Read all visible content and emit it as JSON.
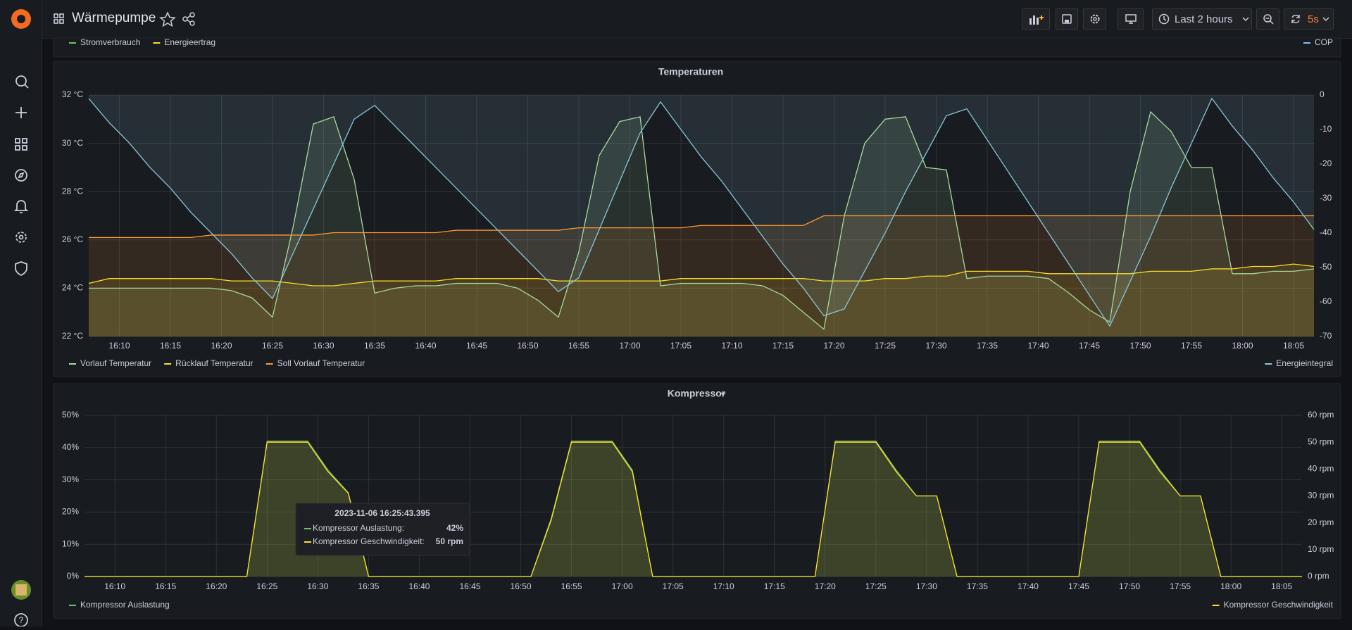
{
  "header": {
    "title": "Wärmepumpe",
    "time_range": "Last 2 hours",
    "refresh": "5s"
  },
  "sidebar": {
    "help": "?"
  },
  "top_panel": {
    "series": [
      {
        "name": "Stromverbrauch",
        "color": "#73bf69"
      },
      {
        "name": "Energieertrag",
        "color": "#fade2a"
      },
      {
        "name": "COP",
        "color": "#8ab8ff",
        "axis": "y2"
      }
    ]
  },
  "tooltip": {
    "time": "2023-11-06 16:25:43.395",
    "rows": [
      {
        "name": "Kompressor Auslastung:",
        "value": "42%"
      },
      {
        "name": "Kompressor Geschwindigkeit:",
        "value": "50 rpm"
      }
    ]
  },
  "chart_data": [
    {
      "type": "line",
      "title": "Temperaturen",
      "grid": true,
      "fill": true,
      "x": [
        "16:07",
        "16:09",
        "16:11",
        "16:13",
        "16:15",
        "16:17",
        "16:19",
        "16:21",
        "16:23",
        "16:25",
        "16:27",
        "16:29",
        "16:31",
        "16:33",
        "16:35",
        "16:37",
        "16:39",
        "16:41",
        "16:43",
        "16:45",
        "16:47",
        "16:49",
        "16:51",
        "16:53",
        "16:55",
        "16:57",
        "16:59",
        "17:01",
        "17:03",
        "17:05",
        "17:07",
        "17:09",
        "17:11",
        "17:13",
        "17:15",
        "17:17",
        "17:19",
        "17:21",
        "17:23",
        "17:25",
        "17:27",
        "17:29",
        "17:31",
        "17:33",
        "17:35",
        "17:37",
        "17:39",
        "17:41",
        "17:43",
        "17:45",
        "17:47",
        "17:49",
        "17:51",
        "17:53",
        "17:55",
        "17:57",
        "17:59",
        "18:01",
        "18:03",
        "18:05",
        "18:07"
      ],
      "xlim": [
        "16:07",
        "18:07"
      ],
      "xticks": [
        "16:10",
        "16:15",
        "16:20",
        "16:25",
        "16:30",
        "16:35",
        "16:40",
        "16:45",
        "16:50",
        "16:55",
        "17:00",
        "17:05",
        "17:10",
        "17:15",
        "17:20",
        "17:25",
        "17:30",
        "17:35",
        "17:40",
        "17:45",
        "17:50",
        "17:55",
        "18:00",
        "18:05"
      ],
      "ylim": [
        22,
        32
      ],
      "yticks": [
        {
          "value": 22,
          "label": "22 °C"
        },
        {
          "value": 24,
          "label": "24 °C"
        },
        {
          "value": 26,
          "label": "26 °C"
        },
        {
          "value": 28,
          "label": "28 °C"
        },
        {
          "value": 30,
          "label": "30 °C"
        },
        {
          "value": 32,
          "label": "32 °C"
        }
      ],
      "y2lim": [
        -70,
        0
      ],
      "y2ticks": [
        0,
        -10,
        -20,
        -30,
        -40,
        -50,
        -60,
        -70
      ],
      "series": [
        {
          "name": "Vorlauf Temperatur",
          "color": "#a7d99d",
          "values": [
            24.0,
            24.0,
            24.0,
            24.0,
            24.0,
            24.0,
            24.0,
            23.9,
            23.6,
            22.8,
            26.5,
            30.8,
            31.1,
            28.5,
            23.8,
            24.0,
            24.1,
            24.1,
            24.2,
            24.2,
            24.2,
            24.0,
            23.5,
            22.8,
            25.5,
            29.5,
            30.9,
            31.1,
            24.1,
            24.2,
            24.2,
            24.2,
            24.2,
            24.1,
            23.7,
            23.0,
            22.3,
            27.0,
            30.0,
            31.0,
            31.1,
            29.0,
            28.9,
            24.4,
            24.5,
            24.5,
            24.5,
            24.4,
            23.8,
            23.1,
            22.6,
            28.0,
            31.3,
            30.5,
            29.0,
            29.0,
            24.6,
            24.6,
            24.7,
            24.7,
            24.8
          ]
        },
        {
          "name": "Rücklauf Temperatur",
          "color": "#fade2a",
          "values": [
            24.2,
            24.4,
            24.4,
            24.4,
            24.4,
            24.4,
            24.4,
            24.3,
            24.3,
            24.3,
            24.2,
            24.1,
            24.1,
            24.2,
            24.3,
            24.3,
            24.3,
            24.3,
            24.4,
            24.4,
            24.4,
            24.4,
            24.4,
            24.3,
            24.3,
            24.3,
            24.3,
            24.3,
            24.3,
            24.4,
            24.4,
            24.4,
            24.4,
            24.4,
            24.4,
            24.4,
            24.3,
            24.3,
            24.3,
            24.4,
            24.4,
            24.5,
            24.5,
            24.7,
            24.7,
            24.7,
            24.7,
            24.6,
            24.6,
            24.6,
            24.6,
            24.6,
            24.7,
            24.7,
            24.7,
            24.8,
            24.8,
            24.9,
            24.9,
            25.0,
            24.9
          ]
        },
        {
          "name": "Soll Vorlauf Temperatur",
          "color": "#ff9830",
          "values": [
            26.1,
            26.1,
            26.1,
            26.1,
            26.1,
            26.1,
            26.2,
            26.2,
            26.2,
            26.2,
            26.2,
            26.2,
            26.3,
            26.3,
            26.3,
            26.3,
            26.3,
            26.3,
            26.4,
            26.4,
            26.4,
            26.4,
            26.4,
            26.4,
            26.5,
            26.5,
            26.5,
            26.5,
            26.5,
            26.5,
            26.6,
            26.6,
            26.6,
            26.6,
            26.6,
            26.6,
            27.0,
            27.0,
            27.0,
            27.0,
            27.0,
            27.0,
            27.0,
            27.0,
            27.0,
            27.0,
            27.0,
            27.0,
            27.0,
            27.0,
            27.0,
            27.0,
            27.0,
            27.0,
            27.0,
            27.0,
            27.0,
            27.0,
            27.0,
            27.0,
            27.0
          ]
        },
        {
          "name": "Energieintegral",
          "color": "#8ac6d9",
          "axis": "y2",
          "values": [
            -1,
            -8,
            -14,
            -21,
            -27,
            -34,
            -40,
            -46,
            -53,
            -59,
            -46,
            -33,
            -20,
            -7,
            -3,
            -9,
            -15,
            -21,
            -27,
            -33,
            -39,
            -45,
            -51,
            -57,
            -53,
            -39,
            -25,
            -11,
            -2,
            -10,
            -18,
            -25,
            -33,
            -41,
            -49,
            -56,
            -64,
            -62,
            -51,
            -40,
            -28,
            -17,
            -6,
            -4,
            -13,
            -22,
            -31,
            -40,
            -49,
            -58,
            -67,
            -54,
            -41,
            -27,
            -14,
            -1,
            -9,
            -16,
            -24,
            -31,
            -39
          ]
        }
      ]
    },
    {
      "type": "line",
      "title": "Kompressor",
      "grid": true,
      "fill": true,
      "x": [
        "16:07",
        "16:09",
        "16:11",
        "16:13",
        "16:15",
        "16:17",
        "16:19",
        "16:21",
        "16:23",
        "16:25",
        "16:27",
        "16:29",
        "16:31",
        "16:33",
        "16:35",
        "16:37",
        "16:39",
        "16:41",
        "16:43",
        "16:45",
        "16:47",
        "16:49",
        "16:51",
        "16:53",
        "16:55",
        "16:57",
        "16:59",
        "17:01",
        "17:03",
        "17:05",
        "17:07",
        "17:09",
        "17:11",
        "17:13",
        "17:15",
        "17:17",
        "17:19",
        "17:21",
        "17:23",
        "17:25",
        "17:27",
        "17:29",
        "17:31",
        "17:33",
        "17:35",
        "17:37",
        "17:39",
        "17:41",
        "17:43",
        "17:45",
        "17:47",
        "17:49",
        "17:51",
        "17:53",
        "17:55",
        "17:57",
        "17:59",
        "18:01",
        "18:03",
        "18:05",
        "18:07"
      ],
      "xlim": [
        "16:07",
        "18:07"
      ],
      "xticks": [
        "16:10",
        "16:15",
        "16:20",
        "16:25",
        "16:30",
        "16:35",
        "16:40",
        "16:45",
        "16:50",
        "16:55",
        "17:00",
        "17:05",
        "17:10",
        "17:15",
        "17:20",
        "17:25",
        "17:30",
        "17:35",
        "17:40",
        "17:45",
        "17:50",
        "17:55",
        "18:00",
        "18:05"
      ],
      "ylim": [
        0,
        50
      ],
      "yticks": [
        {
          "value": 0,
          "label": "0%"
        },
        {
          "value": 10,
          "label": "10%"
        },
        {
          "value": 20,
          "label": "20%"
        },
        {
          "value": 30,
          "label": "30%"
        },
        {
          "value": 40,
          "label": "40%"
        },
        {
          "value": 50,
          "label": "50%"
        }
      ],
      "y2lim": [
        0,
        60
      ],
      "y2ticks": [
        {
          "value": 0,
          "label": "0 rpm"
        },
        {
          "value": 10,
          "label": "10 rpm"
        },
        {
          "value": 20,
          "label": "20 rpm"
        },
        {
          "value": 30,
          "label": "30 rpm"
        },
        {
          "value": 40,
          "label": "40 rpm"
        },
        {
          "value": 50,
          "label": "50 rpm"
        },
        {
          "value": 60,
          "label": "60 rpm"
        }
      ],
      "series": [
        {
          "name": "Kompressor Auslastung",
          "color": "#73bf69",
          "values": [
            0,
            0,
            0,
            0,
            0,
            0,
            0,
            0,
            0,
            42,
            42,
            42,
            33,
            26,
            0,
            0,
            0,
            0,
            0,
            0,
            0,
            0,
            0,
            18,
            42,
            42,
            42,
            33,
            0,
            0,
            0,
            0,
            0,
            0,
            0,
            0,
            0,
            42,
            42,
            42,
            33,
            25,
            25,
            0,
            0,
            0,
            0,
            0,
            0,
            0,
            42,
            42,
            42,
            33,
            25,
            25,
            0,
            0,
            0,
            0,
            0
          ]
        },
        {
          "name": "Kompressor Geschwindigkeit",
          "color": "#fade2a",
          "axis": "y2",
          "values": [
            0,
            0,
            0,
            0,
            0,
            0,
            0,
            0,
            0,
            50,
            50,
            50,
            39,
            31,
            0,
            0,
            0,
            0,
            0,
            0,
            0,
            0,
            0,
            21,
            50,
            50,
            50,
            39,
            0,
            0,
            0,
            0,
            0,
            0,
            0,
            0,
            0,
            50,
            50,
            50,
            39,
            30,
            30,
            0,
            0,
            0,
            0,
            0,
            0,
            0,
            50,
            50,
            50,
            39,
            30,
            30,
            0,
            0,
            0,
            0,
            0
          ]
        }
      ]
    }
  ]
}
